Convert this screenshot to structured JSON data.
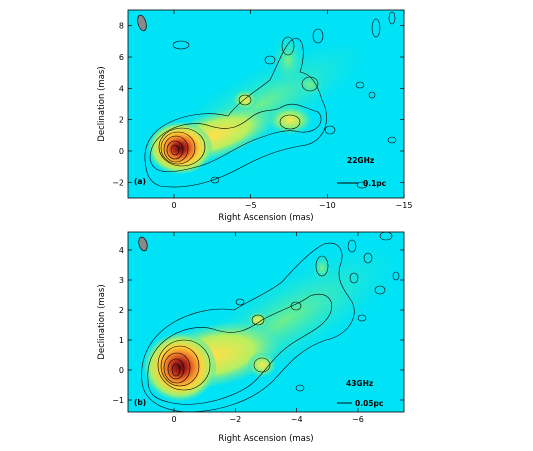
{
  "figure": {
    "panels": [
      {
        "label": "(b)",
        "freq": "43GHz",
        "scale": "0.05pc",
        "xlabel": "Right Ascension (mas)",
        "ylabel": "Declination (mas)",
        "xlim": [
          1.5,
          -7.5
        ],
        "ylim": [
          -1.4,
          4.6
        ],
        "xticks": [
          0,
          -2,
          -4,
          -6
        ],
        "yticks": [
          -1,
          0,
          1,
          2,
          3,
          4
        ],
        "xtick_labels": [
          "0",
          "−2",
          "−4",
          "−6"
        ],
        "ytick_labels": [
          "−1",
          "0",
          "1",
          "2",
          "3",
          "4"
        ]
      },
      {
        "label": "(a)",
        "freq": "22GHz",
        "scale": "0.1pc",
        "xlabel": "Right Ascension (mas)",
        "ylabel": "Declination (mas)",
        "xlim": [
          3,
          -15
        ],
        "ylim": [
          -3,
          9
        ],
        "xticks": [
          0,
          -5,
          -10,
          -15
        ],
        "yticks": [
          -2,
          0,
          2,
          4,
          6,
          8
        ],
        "xtick_labels": [
          "0",
          "−5",
          "−10",
          "−15"
        ],
        "ytick_labels": [
          "−2",
          "0",
          "2",
          "4",
          "6",
          "8"
        ]
      }
    ],
    "colors": {
      "background": "#00e2f5",
      "core": "#8b1a12",
      "mid": "#f08a2a",
      "outer": "#6fe27a",
      "beam": "#8a8a8a"
    }
  }
}
